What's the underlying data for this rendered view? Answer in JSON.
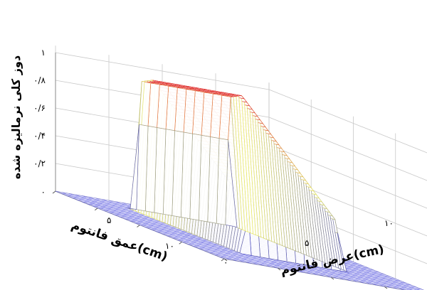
{
  "chart_data": {
    "type": "surface3d",
    "title": "",
    "zlabel": "دوز کلی نرمالیزه شده",
    "xlabel": "عرض فانتوم(cm)",
    "ylabel": "عمق فانتوم(cm)",
    "z_ticks": [
      "۰",
      "۰/۲",
      "۰/۴",
      "۰/۶",
      "۰/۸",
      "۱"
    ],
    "x_ticks": [
      "۵",
      "۱۰"
    ],
    "y_ticks": [
      "۰",
      "۵",
      "۱۰"
    ],
    "zlim": [
      0,
      1
    ],
    "grid": true,
    "colormap": [
      "#2f2fd0",
      "#e8e860",
      "#e03030"
    ],
    "surface": {
      "description_depth_profile": [
        {
          "depth": 0,
          "dose": 0
        },
        {
          "depth": 2,
          "dose": 0
        },
        {
          "depth": 2.2,
          "dose": 0.95
        },
        {
          "depth": 3.5,
          "dose": 1.0
        },
        {
          "depth": 13,
          "dose": 0.35
        },
        {
          "depth": 13.3,
          "dose": 0
        }
      ],
      "field_width_range": [
        3,
        8
      ]
    }
  }
}
